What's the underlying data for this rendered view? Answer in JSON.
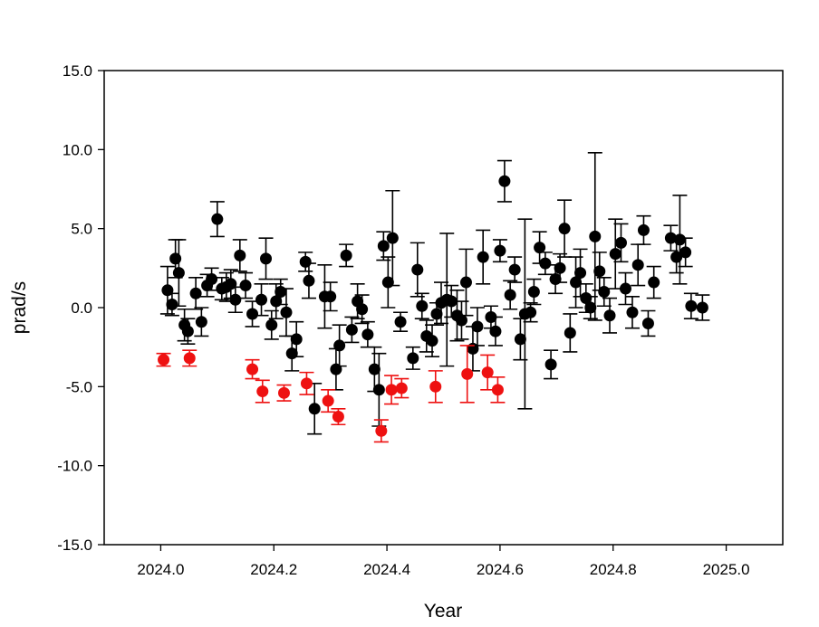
{
  "chart_data": {
    "type": "scatter",
    "title": "",
    "xlabel": "Year",
    "ylabel": "prad/s",
    "xlim": [
      2023.9,
      2025.1
    ],
    "ylim": [
      -15.0,
      15.0
    ],
    "x_ticks": [
      2024.0,
      2024.2,
      2024.4,
      2024.6,
      2024.8,
      2025.0
    ],
    "x_tick_labels": [
      "2024.0",
      "2024.2",
      "2024.4",
      "2024.6",
      "2024.8",
      "2025.0"
    ],
    "y_ticks": [
      15.0,
      10.0,
      5.0,
      0.0,
      -5.0,
      -10.0,
      -15.0
    ],
    "y_tick_labels": [
      "15.0",
      "10.0",
      "5.0",
      "0.0",
      "-5.0",
      "-10.0",
      "-15.0"
    ],
    "grid": false,
    "legend": "none",
    "error_bars": true,
    "series": [
      {
        "color": "#000000",
        "points": [
          {
            "x": 2024.012,
            "y": 1.1,
            "err": 1.5
          },
          {
            "x": 2024.02,
            "y": 0.2,
            "err": 0.7
          },
          {
            "x": 2024.026,
            "y": 3.1,
            "err": 1.2
          },
          {
            "x": 2024.032,
            "y": 2.2,
            "err": 2.1
          },
          {
            "x": 2024.042,
            "y": -1.1,
            "err": 1.0
          },
          {
            "x": 2024.048,
            "y": -1.5,
            "err": 0.8
          },
          {
            "x": 2024.062,
            "y": 0.9,
            "err": 1.0
          },
          {
            "x": 2024.072,
            "y": -0.9,
            "err": 0.9
          },
          {
            "x": 2024.082,
            "y": 1.4,
            "err": 0.7
          },
          {
            "x": 2024.09,
            "y": 1.8,
            "err": 0.7
          },
          {
            "x": 2024.1,
            "y": 5.6,
            "err": 1.1
          },
          {
            "x": 2024.108,
            "y": 1.2,
            "err": 0.7
          },
          {
            "x": 2024.116,
            "y": 1.3,
            "err": 0.9
          },
          {
            "x": 2024.124,
            "y": 1.5,
            "err": 0.9
          },
          {
            "x": 2024.132,
            "y": 0.5,
            "err": 0.8
          },
          {
            "x": 2024.14,
            "y": 3.3,
            "err": 1.0
          },
          {
            "x": 2024.15,
            "y": 1.4,
            "err": 0.8
          },
          {
            "x": 2024.162,
            "y": -0.4,
            "err": 0.8
          },
          {
            "x": 2024.178,
            "y": 0.5,
            "err": 1.0
          },
          {
            "x": 2024.186,
            "y": 3.1,
            "err": 1.3
          },
          {
            "x": 2024.196,
            "y": -1.1,
            "err": 0.9
          },
          {
            "x": 2024.204,
            "y": 0.4,
            "err": 1.1
          },
          {
            "x": 2024.212,
            "y": 1.0,
            "err": 0.8
          },
          {
            "x": 2024.222,
            "y": -0.3,
            "err": 1.5
          },
          {
            "x": 2024.232,
            "y": -2.9,
            "err": 1.1
          },
          {
            "x": 2024.24,
            "y": -2.0,
            "err": 1.1
          },
          {
            "x": 2024.256,
            "y": 2.9,
            "err": 0.6
          },
          {
            "x": 2024.262,
            "y": 1.7,
            "err": 1.1
          },
          {
            "x": 2024.272,
            "y": -6.4,
            "err": 1.6
          },
          {
            "x": 2024.29,
            "y": 0.7,
            "err": 2.0
          },
          {
            "x": 2024.3,
            "y": 0.7,
            "err": 0.9
          },
          {
            "x": 2024.31,
            "y": -3.9,
            "err": 1.3
          },
          {
            "x": 2024.316,
            "y": -2.4,
            "err": 1.3
          },
          {
            "x": 2024.328,
            "y": 3.3,
            "err": 0.7
          },
          {
            "x": 2024.338,
            "y": -1.4,
            "err": 0.8
          },
          {
            "x": 2024.348,
            "y": 0.4,
            "err": 1.1
          },
          {
            "x": 2024.356,
            "y": -0.1,
            "err": 0.9
          },
          {
            "x": 2024.366,
            "y": -1.7,
            "err": 0.8
          },
          {
            "x": 2024.378,
            "y": -3.9,
            "err": 1.4
          },
          {
            "x": 2024.386,
            "y": -5.2,
            "err": 2.3
          },
          {
            "x": 2024.394,
            "y": 3.9,
            "err": 0.9
          },
          {
            "x": 2024.402,
            "y": 1.6,
            "err": 1.6
          },
          {
            "x": 2024.41,
            "y": 4.4,
            "err": 3.0
          },
          {
            "x": 2024.424,
            "y": -0.9,
            "err": 0.6
          },
          {
            "x": 2024.446,
            "y": -3.2,
            "err": 0.7
          },
          {
            "x": 2024.454,
            "y": 2.4,
            "err": 1.7
          },
          {
            "x": 2024.462,
            "y": 0.1,
            "err": 0.8
          },
          {
            "x": 2024.47,
            "y": -1.8,
            "err": 1.0
          },
          {
            "x": 2024.48,
            "y": -2.1,
            "err": 1.0
          },
          {
            "x": 2024.488,
            "y": -0.4,
            "err": 0.7
          },
          {
            "x": 2024.496,
            "y": 0.3,
            "err": 1.3
          },
          {
            "x": 2024.506,
            "y": 0.5,
            "err": 4.2
          },
          {
            "x": 2024.514,
            "y": 0.4,
            "err": 1.0
          },
          {
            "x": 2024.524,
            "y": -0.5,
            "err": 1.6
          },
          {
            "x": 2024.532,
            "y": -0.8,
            "err": 1.2
          },
          {
            "x": 2024.54,
            "y": 1.6,
            "err": 2.1
          },
          {
            "x": 2024.552,
            "y": -2.6,
            "err": 1.4
          },
          {
            "x": 2024.56,
            "y": -1.2,
            "err": 1.2
          },
          {
            "x": 2024.57,
            "y": 3.2,
            "err": 1.7
          },
          {
            "x": 2024.584,
            "y": -0.6,
            "err": 0.7
          },
          {
            "x": 2024.592,
            "y": -1.5,
            "err": 0.9
          },
          {
            "x": 2024.6,
            "y": 3.6,
            "err": 0.7
          },
          {
            "x": 2024.608,
            "y": 8.0,
            "err": 1.3
          },
          {
            "x": 2024.618,
            "y": 0.8,
            "err": 0.9
          },
          {
            "x": 2024.626,
            "y": 2.4,
            "err": 0.8
          },
          {
            "x": 2024.636,
            "y": -2.0,
            "err": 1.3
          },
          {
            "x": 2024.644,
            "y": -0.4,
            "err": 6.0
          },
          {
            "x": 2024.654,
            "y": -0.3,
            "err": 0.6
          },
          {
            "x": 2024.66,
            "y": 1.0,
            "err": 0.8
          },
          {
            "x": 2024.67,
            "y": 3.8,
            "err": 1.0
          },
          {
            "x": 2024.68,
            "y": 2.8,
            "err": 0.7
          },
          {
            "x": 2024.69,
            "y": -3.6,
            "err": 0.9
          },
          {
            "x": 2024.698,
            "y": 1.8,
            "err": 0.9
          },
          {
            "x": 2024.706,
            "y": 2.5,
            "err": 0.9
          },
          {
            "x": 2024.714,
            "y": 5.0,
            "err": 1.8
          },
          {
            "x": 2024.724,
            "y": -1.6,
            "err": 1.2
          },
          {
            "x": 2024.734,
            "y": 1.6,
            "err": 1.6
          },
          {
            "x": 2024.742,
            "y": 2.2,
            "err": 1.5
          },
          {
            "x": 2024.752,
            "y": 0.6,
            "err": 0.9
          },
          {
            "x": 2024.76,
            "y": 0.0,
            "err": 0.7
          },
          {
            "x": 2024.768,
            "y": 4.5,
            "err": 5.3
          },
          {
            "x": 2024.776,
            "y": 2.3,
            "err": 1.2
          },
          {
            "x": 2024.784,
            "y": 1.0,
            "err": 0.9
          },
          {
            "x": 2024.794,
            "y": -0.5,
            "err": 1.1
          },
          {
            "x": 2024.804,
            "y": 3.4,
            "err": 2.2
          },
          {
            "x": 2024.814,
            "y": 4.1,
            "err": 1.2
          },
          {
            "x": 2024.822,
            "y": 1.2,
            "err": 1.0
          },
          {
            "x": 2024.834,
            "y": -0.3,
            "err": 1.0
          },
          {
            "x": 2024.844,
            "y": 2.7,
            "err": 1.3
          },
          {
            "x": 2024.854,
            "y": 4.9,
            "err": 0.9
          },
          {
            "x": 2024.862,
            "y": -1.0,
            "err": 0.8
          },
          {
            "x": 2024.872,
            "y": 1.6,
            "err": 1.0
          },
          {
            "x": 2024.902,
            "y": 4.4,
            "err": 0.8
          },
          {
            "x": 2024.912,
            "y": 3.2,
            "err": 1.0
          },
          {
            "x": 2024.918,
            "y": 4.3,
            "err": 2.8
          },
          {
            "x": 2024.928,
            "y": 3.5,
            "err": 0.9
          },
          {
            "x": 2024.938,
            "y": 0.1,
            "err": 0.8
          },
          {
            "x": 2024.958,
            "y": 0.0,
            "err": 0.8
          }
        ]
      },
      {
        "color": "#ee1111",
        "points": [
          {
            "x": 2024.005,
            "y": -3.3,
            "err": 0.4
          },
          {
            "x": 2024.051,
            "y": -3.2,
            "err": 0.5
          },
          {
            "x": 2024.162,
            "y": -3.9,
            "err": 0.6
          },
          {
            "x": 2024.18,
            "y": -5.3,
            "err": 0.7
          },
          {
            "x": 2024.218,
            "y": -5.4,
            "err": 0.5
          },
          {
            "x": 2024.258,
            "y": -4.8,
            "err": 0.7
          },
          {
            "x": 2024.296,
            "y": -5.9,
            "err": 0.7
          },
          {
            "x": 2024.314,
            "y": -6.9,
            "err": 0.5
          },
          {
            "x": 2024.39,
            "y": -7.8,
            "err": 0.7
          },
          {
            "x": 2024.408,
            "y": -5.2,
            "err": 0.9
          },
          {
            "x": 2024.426,
            "y": -5.1,
            "err": 0.6
          },
          {
            "x": 2024.486,
            "y": -5.0,
            "err": 1.0
          },
          {
            "x": 2024.542,
            "y": -4.2,
            "err": 1.8
          },
          {
            "x": 2024.578,
            "y": -4.1,
            "err": 1.1
          },
          {
            "x": 2024.596,
            "y": -5.2,
            "err": 0.8
          }
        ]
      }
    ]
  }
}
